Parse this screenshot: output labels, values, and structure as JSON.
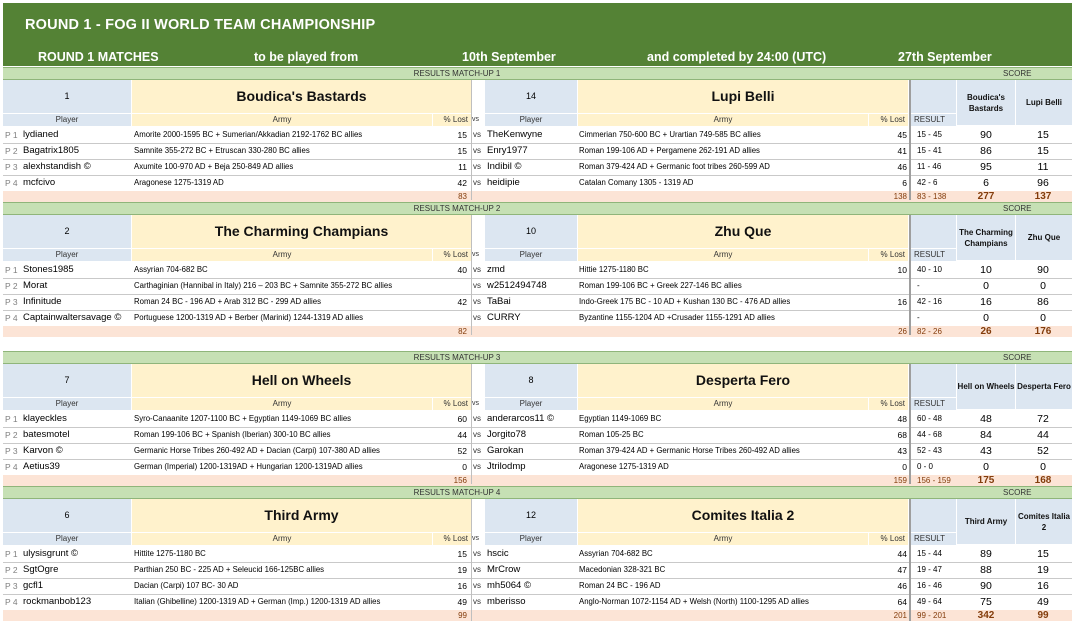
{
  "header": {
    "title": "ROUND 1 - FOG II WORLD TEAM CHAMPIONSHIP",
    "matches_label": "ROUND 1 MATCHES",
    "played_from_label": "to be played from",
    "start_date": "10th September",
    "completed_label": "and completed by 24:00 (UTC)",
    "end_date": "27th September"
  },
  "labels": {
    "player": "Player",
    "army": "Army",
    "lost": "% Lost",
    "vs": "vs",
    "result": "RESULT",
    "score": "SCORE"
  },
  "matchups": [
    {
      "title": "RESULTS MATCH-UP 1",
      "team1": {
        "num": "1",
        "name": "Boudica's Bastards",
        "score_head": "Boudica's Bastards"
      },
      "team2": {
        "num": "14",
        "name": "Lupi Belli",
        "score_head": "Lupi Belli"
      },
      "rows": [
        {
          "pos": "P 1",
          "p1": "lydianed",
          "a1": "Amorite 2000-1595 BC + Sumerian/Akkadian 2192-1762 BC allies",
          "l1": "15",
          "p2": "TheKenwyne",
          "a2": "Cimmerian 750-600 BC + Urartian 749-585 BC allies",
          "l2": "45",
          "res": "15 - 45",
          "s1": "90",
          "s2": "15"
        },
        {
          "pos": "P 2",
          "p1": "Bagatrix1805",
          "a1": "Samnite 355-272 BC + Etruscan 330-280 BC allies",
          "l1": "15",
          "p2": "Enry1977",
          "a2": "Roman 199-106 AD + Pergamene 262-191 AD allies",
          "l2": "41",
          "res": "15 - 41",
          "s1": "86",
          "s2": "15"
        },
        {
          "pos": "P 3",
          "p1": "alexhstandish ©",
          "a1": "Axumite 100-970 AD + Beja 250-849 AD allies",
          "l1": "11",
          "p2": "Indibil ©",
          "a2": "Roman 379-424 AD + Germanic foot tribes 260-599 AD",
          "l2": "46",
          "res": "11 - 46",
          "s1": "95",
          "s2": "11"
        },
        {
          "pos": "P 4",
          "p1": "mcfcivo",
          "a1": "Aragonese 1275-1319 AD",
          "l1": "42",
          "p2": "heidipie",
          "a2": "Catalan Comany 1305 - 1319 AD",
          "l2": "6",
          "res": "42 - 6",
          "s1": "6",
          "s2": "96"
        }
      ],
      "totals": {
        "t1": "83",
        "t2": "138",
        "res": "83 - 138",
        "s1": "277",
        "s2": "137"
      }
    },
    {
      "title": "RESULTS MATCH-UP 2",
      "team1": {
        "num": "2",
        "name": "The Charming Champians",
        "score_head": "The Charming Champians"
      },
      "team2": {
        "num": "10",
        "name": "Zhu Que",
        "score_head": "Zhu Que"
      },
      "rows": [
        {
          "pos": "P 1",
          "p1": "Stones1985",
          "a1": "Assyrian 704-682 BC",
          "l1": "40",
          "p2": "zmd",
          "a2": "Hittie 1275-1180 BC",
          "l2": "10",
          "res": "40 - 10",
          "s1": "10",
          "s2": "90"
        },
        {
          "pos": "P 2",
          "p1": "Morat",
          "a1": "Carthaginian (Hannibal in Italy) 216 – 203 BC + Samnite 355-272 BC allies",
          "l1": "",
          "p2": "w2512494748",
          "a2": "Roman 199-106 BC + Greek 227-146 BC allies",
          "l2": "",
          "res": "-",
          "s1": "0",
          "s2": "0"
        },
        {
          "pos": "P 3",
          "p1": "Infinitude",
          "a1": "Roman 24 BC - 196 AD + Arab 312 BC - 299 AD allies",
          "l1": "42",
          "p2": "TaBai",
          "a2": "Indo-Greek 175 BC - 10 AD + Kushan 130 BC - 476 AD allies",
          "l2": "16",
          "res": "42 - 16",
          "s1": "16",
          "s2": "86"
        },
        {
          "pos": "P 4",
          "p1": "Captainwaltersavage ©",
          "a1": "Portuguese 1200-1319 AD + Berber (Marinid) 1244-1319 AD allies",
          "l1": "",
          "p2": "CURRY",
          "a2": "Byzantine 1155-1204 AD +Crusader 1155-1291 AD allies",
          "l2": "",
          "res": "-",
          "s1": "0",
          "s2": "0"
        }
      ],
      "totals": {
        "t1": "82",
        "t2": "26",
        "res": "82 - 26",
        "s1": "26",
        "s2": "176"
      }
    },
    {
      "title": "RESULTS MATCH-UP 3",
      "team1": {
        "num": "7",
        "name": "Hell on   Wheels",
        "score_head": "Hell on Wheels"
      },
      "team2": {
        "num": "8",
        "name": "Desperta   Fero",
        "score_head": "Desperta Fero"
      },
      "rows": [
        {
          "pos": "P 1",
          "p1": "klayeckles",
          "a1": "Syro-Canaanite 1207-1100 BC + Egyptian 1149-1069 BC allies",
          "l1": "60",
          "p2": "anderarcos11 ©",
          "a2": "Egyptian 1149-1069 BC",
          "l2": "48",
          "res": "60 - 48",
          "s1": "48",
          "s2": "72"
        },
        {
          "pos": "P 2",
          "p1": "batesmotel",
          "a1": "Roman 199-106 BC + Spanish (Iberian) 300-10 BC allies",
          "l1": "44",
          "p2": "Jorgito78",
          "a2": "Roman 105-25 BC",
          "l2": "68",
          "res": "44 - 68",
          "s1": "84",
          "s2": "44"
        },
        {
          "pos": "P 3",
          "p1": "Karvon ©",
          "a1": "Germanic Horse Tribes 260-492 AD + Dacian (Carpi) 107-380 AD allies",
          "l1": "52",
          "p2": "Garokan",
          "a2": "Roman 379-424 AD + Germanic Horse Tribes 260-492 AD allies",
          "l2": "43",
          "res": "52 - 43",
          "s1": "43",
          "s2": "52"
        },
        {
          "pos": "P 4",
          "p1": "Aetius39",
          "a1": "German (Imperial) 1200-1319AD + Hungarian 1200-1319AD allies",
          "l1": "0",
          "p2": "Jtrilodmp",
          "a2": "Aragonese 1275-1319 AD",
          "l2": "0",
          "res": "0 - 0",
          "s1": "0",
          "s2": "0"
        }
      ],
      "totals": {
        "t1": "156",
        "t2": "159",
        "res": "156 - 159",
        "s1": "175",
        "s2": "168"
      }
    },
    {
      "title": "RESULTS MATCH-UP 4",
      "team1": {
        "num": "6",
        "name": "Third Army",
        "score_head": "Third Army"
      },
      "team2": {
        "num": "12",
        "name": "Comites   Italia 2",
        "score_head": "Comites Italia 2"
      },
      "rows": [
        {
          "pos": "P 1",
          "p1": "ulysisgrunt ©",
          "a1": "Hittite 1275-1180 BC",
          "l1": "15",
          "p2": "hscic",
          "a2": "Assyrian 704-682 BC",
          "l2": "44",
          "res": "15 - 44",
          "s1": "89",
          "s2": "15"
        },
        {
          "pos": "P 2",
          "p1": "SgtOgre",
          "a1": "Parthian 250 BC - 225 AD + Seleucid 166-125BC allies",
          "l1": "19",
          "p2": "MrCrow",
          "a2": "Macedonian 328-321 BC",
          "l2": "47",
          "res": "19 - 47",
          "s1": "88",
          "s2": "19"
        },
        {
          "pos": "P 3",
          "p1": "gcfl1",
          "a1": "Dacian (Carpi) 107 BC- 30 AD",
          "l1": "16",
          "p2": "mh5064 ©",
          "a2": "Roman 24 BC - 196 AD",
          "l2": "46",
          "res": "16 - 46",
          "s1": "90",
          "s2": "16"
        },
        {
          "pos": "P 4",
          "p1": "rockmanbob123",
          "a1": "Italian (Ghibelline) 1200-1319 AD + German (Imp.) 1200-1319 AD allies",
          "l1": "49",
          "p2": "mberisso",
          "a2": "Anglo-Norman 1072-1154 AD + Welsh (North) 1100-1295 AD allies",
          "l2": "64",
          "res": "49 - 64",
          "s1": "75",
          "s2": "49"
        }
      ],
      "totals": {
        "t1": "99",
        "t2": "201",
        "res": "99 - 201",
        "s1": "342",
        "s2": "99"
      }
    }
  ]
}
